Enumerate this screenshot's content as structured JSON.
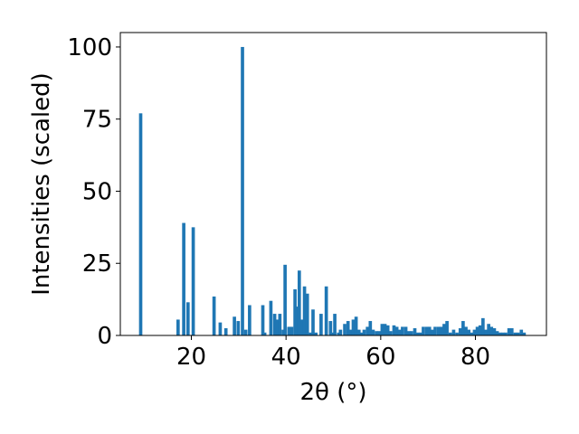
{
  "chart_data": {
    "type": "bar",
    "title": "",
    "xlabel": "2θ (°)",
    "ylabel": "Intensities (scaled)",
    "xlim": [
      5,
      95
    ],
    "ylim": [
      0,
      105
    ],
    "x_ticks": [
      20,
      40,
      60,
      80
    ],
    "y_ticks": [
      0,
      25,
      50,
      75,
      100
    ],
    "x_tick_labels": [
      "20",
      "40",
      "60",
      "80"
    ],
    "y_tick_labels": [
      "0",
      "25",
      "50",
      "75",
      "100"
    ],
    "bar_width_deg": 0.7,
    "grid": false,
    "legend": "none",
    "color": "#1f77b4",
    "x": [
      9.3,
      17.2,
      18.4,
      19.3,
      20.4,
      24.8,
      26.1,
      27.3,
      29.1,
      29.9,
      30.8,
      31.5,
      32.3,
      35.1,
      35.5,
      36.8,
      37.6,
      38.2,
      38.7,
      39.4,
      39.8,
      40.6,
      41.2,
      41.9,
      42.4,
      42.8,
      43.4,
      43.9,
      44.5,
      45.2,
      45.7,
      46.3,
      47.4,
      48.5,
      49.4,
      49.8,
      50.3,
      51.1,
      51.5,
      52.4,
      53.1,
      53.6,
      54.2,
      54.8,
      55.4,
      55.9,
      56.5,
      57.2,
      57.8,
      58.4,
      59.1,
      59.7,
      60.3,
      60.9,
      61.5,
      62.1,
      62.8,
      63.4,
      64.0,
      64.6,
      65.3,
      65.9,
      66.5,
      67.2,
      67.8,
      68.4,
      69.0,
      69.7,
      70.3,
      70.9,
      71.5,
      72.2,
      72.8,
      73.4,
      74.0,
      74.7,
      75.4,
      76.1,
      76.8,
      77.4,
      78.0,
      78.6,
      79.2,
      79.8,
      80.4,
      81.0,
      81.6,
      82.2,
      82.8,
      83.4,
      84.0,
      84.6,
      85.2,
      85.8,
      86.4,
      87.1,
      87.7,
      88.4,
      89.0,
      89.7,
      90.3
    ],
    "values": [
      77,
      5.5,
      39,
      11.5,
      37.5,
      13.5,
      4.5,
      2.5,
      6.5,
      5,
      100,
      2,
      10.5,
      10.5,
      1,
      12,
      7.5,
      5.5,
      7.5,
      2,
      24.5,
      3,
      3,
      16,
      10,
      22.5,
      5.5,
      17,
      14.5,
      1,
      9,
      1,
      7.5,
      17,
      5,
      1,
      7.5,
      1,
      2,
      4,
      5,
      2,
      5.5,
      6.5,
      2,
      1,
      2,
      3,
      5,
      2,
      1.5,
      1.5,
      4,
      4,
      3.5,
      1.5,
      3.5,
      3,
      2,
      3,
      3,
      1.5,
      1.5,
      2.5,
      1,
      1,
      3,
      3,
      3,
      2,
      3,
      3,
      3,
      4,
      5,
      1,
      2,
      1,
      2.5,
      5,
      3,
      2,
      1,
      2,
      3,
      3.5,
      6,
      2,
      4,
      3,
      2.5,
      1.5,
      1,
      1,
      1,
      2.5,
      2.5,
      1,
      1,
      2,
      1
    ]
  }
}
